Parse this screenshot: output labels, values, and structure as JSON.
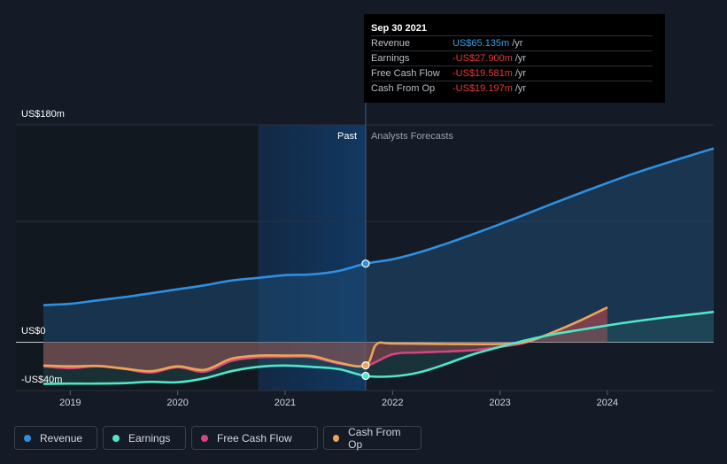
{
  "tooltip": {
    "date": "Sep 30 2021",
    "rows": [
      {
        "label": "Revenue",
        "value": "US$65.135m",
        "unit": "/yr",
        "color": "#3a9fe8"
      },
      {
        "label": "Earnings",
        "value": "-US$27.900m",
        "unit": "/yr",
        "color": "#e5383b"
      },
      {
        "label": "Free Cash Flow",
        "value": "-US$19.581m",
        "unit": "/yr",
        "color": "#e5383b"
      },
      {
        "label": "Cash From Op",
        "value": "-US$19.197m",
        "unit": "/yr",
        "color": "#e5383b"
      }
    ]
  },
  "legend": [
    {
      "label": "Revenue",
      "color": "#2e8fe0"
    },
    {
      "label": "Earnings",
      "color": "#4ee8c9"
    },
    {
      "label": "Free Cash Flow",
      "color": "#d6457d"
    },
    {
      "label": "Cash From Op",
      "color": "#eaa657"
    }
  ],
  "chart_data": {
    "type": "line",
    "past_label": "Past",
    "forecast_label": "Analysts Forecasts",
    "y_tick_labels": [
      "US$180m",
      "US$0",
      "-US$40m"
    ],
    "ylim": [
      -40,
      180
    ],
    "xlim": [
      2018.75,
      2024.99
    ],
    "x_ticks": [
      2019,
      2020,
      2021,
      2022,
      2023,
      2024
    ],
    "divider_x": 2021.75,
    "highlight_start": 2020.75,
    "series": [
      {
        "name": "Revenue",
        "color": "#2e8fe0",
        "x": [
          2018.75,
          2019.0,
          2019.25,
          2019.5,
          2019.75,
          2020.0,
          2020.25,
          2020.5,
          2020.75,
          2021.0,
          2021.25,
          2021.5,
          2021.75,
          2022.0,
          2022.25,
          2022.5,
          2022.75,
          2023.0,
          2023.25,
          2023.5,
          2023.75,
          2024.0,
          2024.25,
          2024.5,
          2024.75,
          2024.99
        ],
        "y": [
          30.7,
          31.8,
          34.6,
          37.3,
          40.5,
          43.8,
          47.1,
          51.1,
          53.3,
          55.5,
          56.2,
          59.1,
          65.1,
          68.7,
          74.4,
          81.6,
          89.5,
          97.7,
          106.3,
          115.1,
          123.6,
          131.9,
          139.8,
          147.0,
          154.0,
          160.5
        ]
      },
      {
        "name": "Earnings",
        "color": "#4ee8c9",
        "x": [
          2018.75,
          2019.0,
          2019.25,
          2019.5,
          2019.75,
          2020.0,
          2020.25,
          2020.5,
          2020.75,
          2021.0,
          2021.25,
          2021.5,
          2021.75,
          2022.0,
          2022.25,
          2022.5,
          2022.75,
          2023.0,
          2023.25,
          2023.5,
          2023.75,
          2024.0,
          2024.25,
          2024.5,
          2024.75,
          2024.99
        ],
        "y": [
          -34.6,
          -34.3,
          -34.3,
          -33.9,
          -32.8,
          -33.2,
          -29.9,
          -24.0,
          -20.4,
          -19.3,
          -20.4,
          -22.3,
          -27.9,
          -28.3,
          -25.0,
          -18.0,
          -10.0,
          -3.9,
          1.8,
          6.6,
          10.3,
          13.9,
          17.2,
          20.1,
          22.6,
          25.1
        ]
      },
      {
        "name": "Free Cash Flow",
        "color": "#d6457d",
        "x": [
          2018.75,
          2019.0,
          2019.25,
          2019.5,
          2019.75,
          2020.0,
          2020.25,
          2020.5,
          2020.75,
          2021.0,
          2021.25,
          2021.5,
          2021.75,
          2022.0,
          2022.25,
          2022.5,
          2022.75,
          2023.0,
          2023.25,
          2023.5,
          2023.75,
          2024.0
        ],
        "y": [
          -20.0,
          -21.5,
          -19.9,
          -22.1,
          -25.1,
          -20.7,
          -24.4,
          -15.5,
          -12.5,
          -12.2,
          -12.5,
          -17.7,
          -19.6,
          -10.0,
          -8.5,
          -7.7,
          -6.6,
          -3.9,
          0.0,
          8.5,
          18.1,
          28.8
        ]
      },
      {
        "name": "Cash From Op",
        "color": "#eaa657",
        "x": [
          2018.75,
          2019.0,
          2019.25,
          2019.5,
          2019.75,
          2020.0,
          2020.25,
          2020.5,
          2020.75,
          2021.0,
          2021.25,
          2021.5,
          2021.75,
          2021.85,
          2022.0,
          2022.5,
          2023.0,
          2023.25,
          2023.5,
          2023.75,
          2024.0
        ],
        "y": [
          -19.3,
          -20.0,
          -19.6,
          -21.8,
          -24.0,
          -20.0,
          -22.9,
          -13.7,
          -11.1,
          -11.1,
          -11.5,
          -17.0,
          -19.2,
          -1.8,
          -1.1,
          -1.5,
          -1.5,
          0.4,
          8.5,
          18.1,
          28.8
        ]
      }
    ],
    "markers": [
      {
        "series": "Revenue",
        "x": 2021.75,
        "y": 65.1
      },
      {
        "series": "Earnings",
        "x": 2021.75,
        "y": -27.9
      },
      {
        "series": "Cash From Op",
        "x": 2021.75,
        "y": -19.2
      }
    ]
  }
}
